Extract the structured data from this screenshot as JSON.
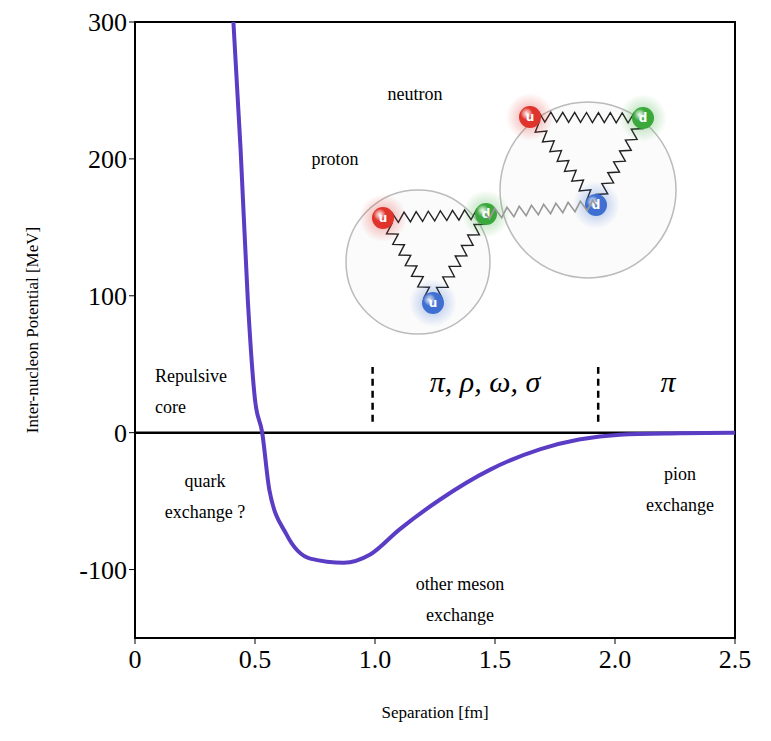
{
  "chart_data": {
    "type": "line",
    "x_label": "Separation [fm]",
    "y_label": "Inter-nucleon Potential [MeV]",
    "x": [
      0.41,
      0.44,
      0.47,
      0.5,
      0.53,
      0.56,
      0.63,
      0.73,
      0.87,
      0.98,
      1.1,
      1.27,
      1.48,
      1.69,
      1.85,
      2.02,
      2.27,
      2.5
    ],
    "values": [
      300,
      207,
      97,
      24,
      0,
      -42,
      -74,
      -92,
      -95,
      -89,
      -71,
      -49,
      -27,
      -12,
      -5,
      -1.5,
      -0.5,
      0
    ],
    "color": "#5b3cc4",
    "xlim": [
      0,
      2.5
    ],
    "xticks": [
      0,
      0.5,
      {
        "value": 1,
        "label": "1.0"
      },
      1.5,
      {
        "value": 2,
        "label": "2.0"
      },
      2.5
    ],
    "ylim": [
      -150,
      300
    ],
    "yticks": [
      -100,
      0,
      100,
      200,
      300
    ],
    "grid": false,
    "zero_line": 0,
    "region_boundaries": {
      "x": [
        0.99,
        1.93
      ],
      "y": [
        8,
        48
      ]
    },
    "annotations": [
      "Repulsive core",
      "π, ρ, ω, σ",
      "π",
      "quark exchange ?",
      "other meson exchange",
      "pion exchange"
    ],
    "diagram": {
      "proton": {
        "label": "proton",
        "quarks": [
          "u",
          "d",
          "u"
        ]
      },
      "neutron": {
        "label": "neutron",
        "quarks": [
          "u",
          "d",
          "d"
        ]
      }
    }
  }
}
